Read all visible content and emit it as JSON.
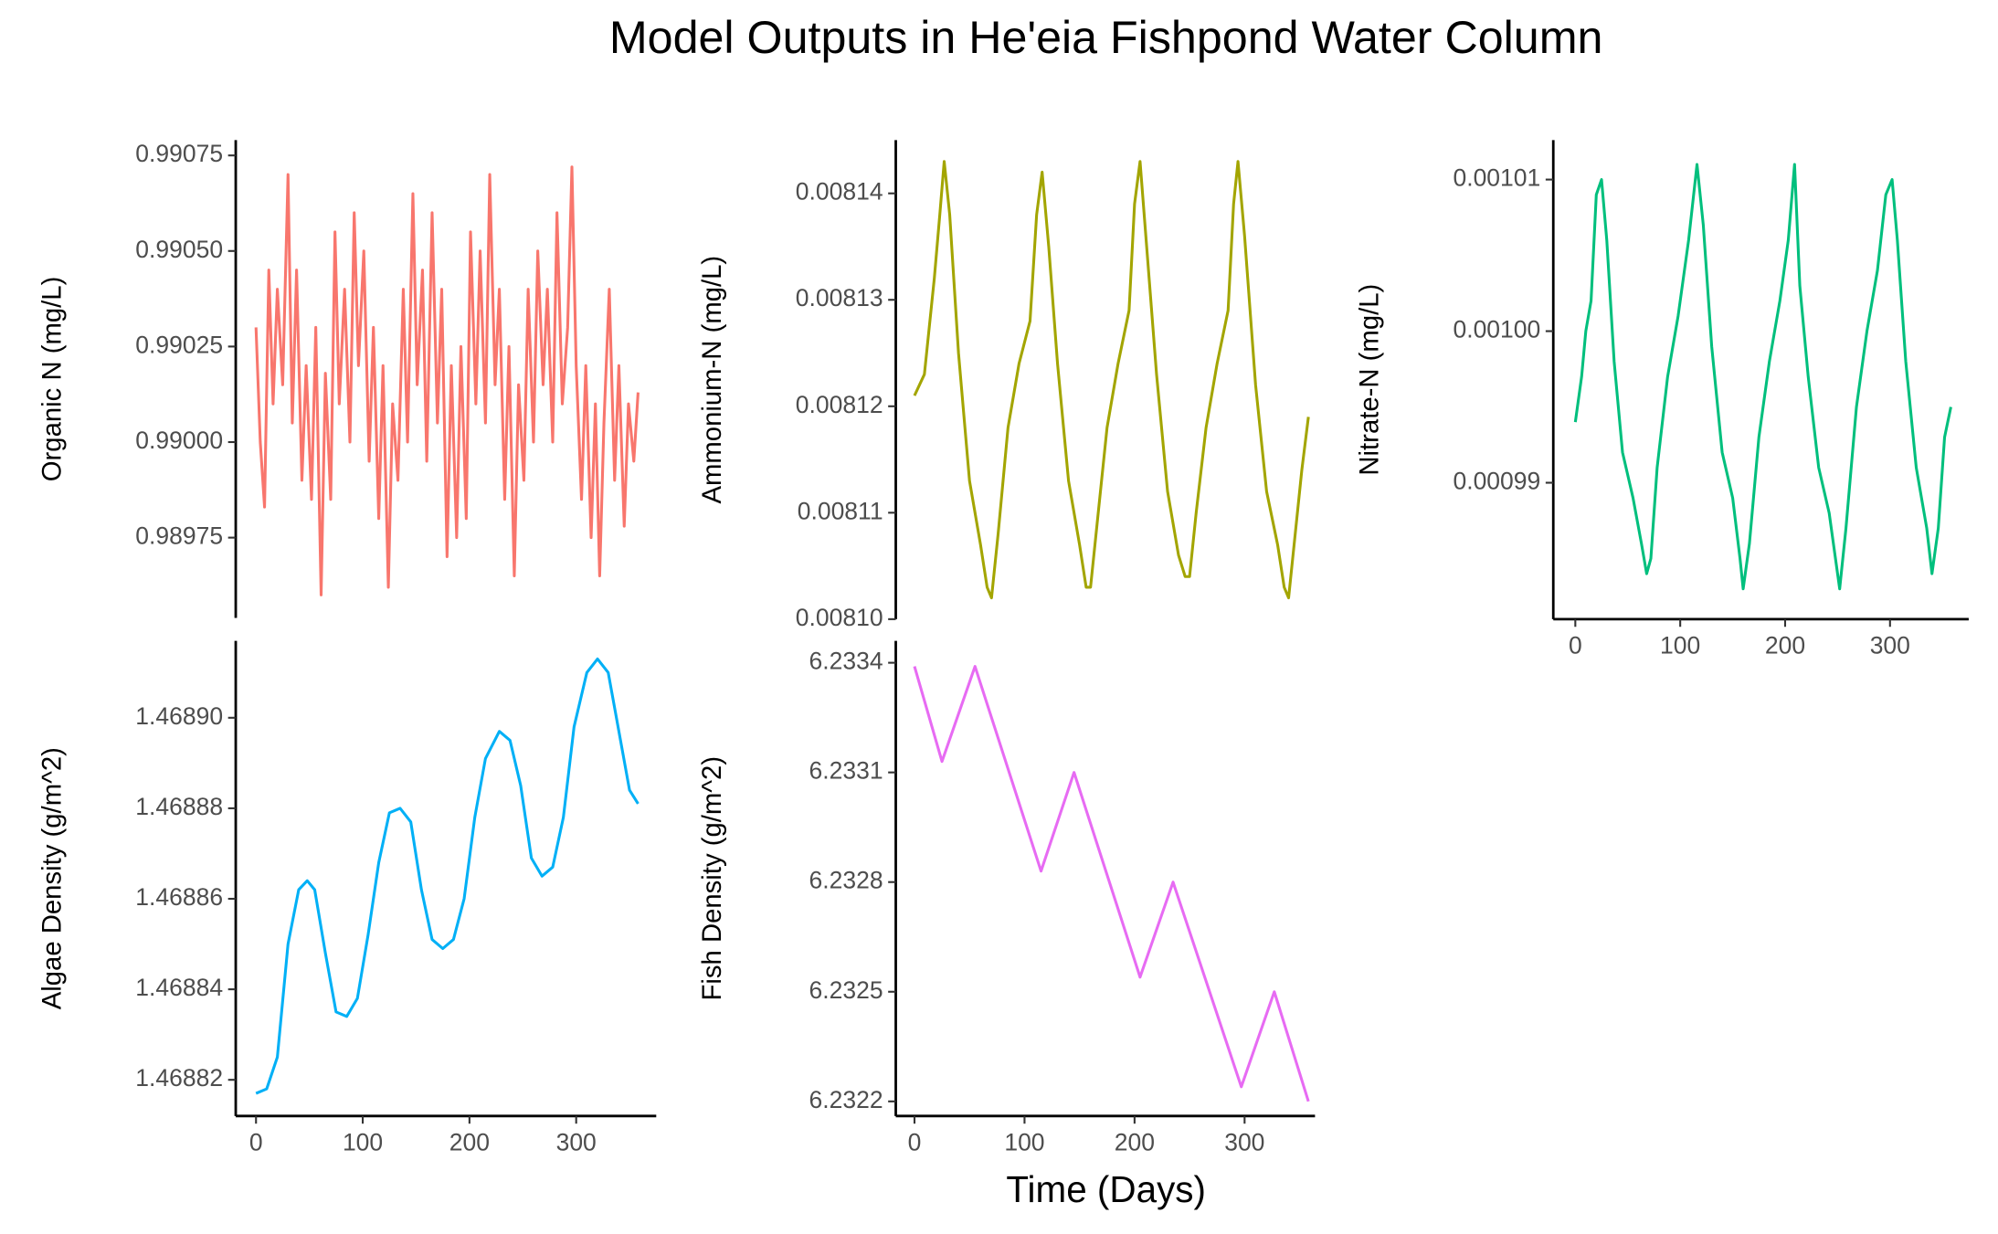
{
  "title": "Model Outputs in He'eia Fishpond Water Column",
  "x_label": "Time (Days)",
  "chart_data": [
    {
      "type": "line",
      "y_label": "Organic N (mg/L)",
      "color": "#F8766D",
      "x": [
        0,
        4,
        8,
        12,
        16,
        20,
        25,
        30,
        34,
        38,
        43,
        47,
        52,
        56,
        61,
        65,
        70,
        74,
        78,
        83,
        88,
        92,
        96,
        101,
        106,
        110,
        115,
        119,
        124,
        128,
        133,
        138,
        142,
        147,
        151,
        156,
        160,
        165,
        170,
        174,
        179,
        183,
        188,
        192,
        197,
        201,
        206,
        210,
        215,
        219,
        224,
        228,
        233,
        237,
        242,
        246,
        251,
        255,
        260,
        264,
        269,
        273,
        278,
        282,
        287,
        292,
        296,
        300,
        305,
        309,
        314,
        318,
        322,
        326,
        331,
        336,
        340,
        345,
        349,
        354,
        358
      ],
      "values": [
        0.9903,
        0.99,
        0.98983,
        0.99045,
        0.9901,
        0.9904,
        0.99015,
        0.9907,
        0.99005,
        0.99045,
        0.9899,
        0.9902,
        0.98985,
        0.9903,
        0.9896,
        0.99018,
        0.98985,
        0.99055,
        0.9901,
        0.9904,
        0.99,
        0.9906,
        0.9902,
        0.9905,
        0.98995,
        0.9903,
        0.9898,
        0.9902,
        0.98962,
        0.9901,
        0.9899,
        0.9904,
        0.99,
        0.99065,
        0.99015,
        0.99045,
        0.98995,
        0.9906,
        0.99005,
        0.9904,
        0.9897,
        0.9902,
        0.98975,
        0.99025,
        0.9898,
        0.99055,
        0.9901,
        0.9905,
        0.99005,
        0.9907,
        0.99015,
        0.9904,
        0.98985,
        0.99025,
        0.98965,
        0.99015,
        0.9899,
        0.9904,
        0.99,
        0.9905,
        0.99015,
        0.9904,
        0.99,
        0.9906,
        0.9901,
        0.9903,
        0.99072,
        0.9902,
        0.98985,
        0.9902,
        0.98975,
        0.9901,
        0.98965,
        0.99005,
        0.9904,
        0.9899,
        0.9902,
        0.98978,
        0.9901,
        0.98995,
        0.99013
      ],
      "xlim": [
        -19,
        375
      ],
      "ylim": [
        0.98954,
        0.99079
      ],
      "yticks": [
        0.98975,
        {
          "value": 0.99,
          "label": "0.99000"
        },
        0.99025,
        {
          "value": 0.9905,
          "label": "0.99050"
        },
        0.99075
      ]
    },
    {
      "type": "line",
      "y_label": "Ammonium-N (mg/L)",
      "color": "#A3A500",
      "x": [
        0,
        9,
        18,
        23,
        27,
        32,
        40,
        50,
        60,
        66,
        70,
        76,
        85,
        95,
        105,
        111,
        116,
        122,
        130,
        140,
        150,
        156,
        160,
        166,
        175,
        185,
        195,
        200,
        205,
        211,
        220,
        230,
        240,
        246,
        250,
        256,
        265,
        275,
        285,
        290,
        294,
        300,
        310,
        320,
        330,
        336,
        340,
        346,
        352,
        358
      ],
      "values": [
        0.008121,
        0.008123,
        0.008132,
        0.008138,
        0.008143,
        0.008138,
        0.008125,
        0.008113,
        0.008107,
        0.008103,
        0.008102,
        0.008108,
        0.008118,
        0.008124,
        0.008128,
        0.008138,
        0.008142,
        0.008135,
        0.008124,
        0.008113,
        0.008107,
        0.008103,
        0.008103,
        0.008109,
        0.008118,
        0.008124,
        0.008129,
        0.008139,
        0.008143,
        0.008135,
        0.008123,
        0.008112,
        0.008106,
        0.008104,
        0.008104,
        0.00811,
        0.008118,
        0.008124,
        0.008129,
        0.008139,
        0.008143,
        0.008136,
        0.008122,
        0.008112,
        0.008107,
        0.008103,
        0.008102,
        0.008108,
        0.008114,
        0.008119
      ],
      "xlim": [
        -17,
        364
      ],
      "ylim": [
        0.0081,
        0.008145
      ],
      "yticks": [
        {
          "value": 0.0081,
          "label": "0.00810"
        },
        0.00811,
        0.00812,
        0.00813,
        0.00814
      ]
    },
    {
      "type": "line",
      "y_label": "Nitrate-N (mg/L)",
      "color": "#00BF7D",
      "x": [
        0,
        6,
        10,
        15,
        20,
        25,
        30,
        37,
        45,
        55,
        63,
        68,
        72,
        78,
        88,
        98,
        108,
        116,
        122,
        130,
        140,
        150,
        157,
        160,
        166,
        175,
        185,
        195,
        203,
        209,
        214,
        222,
        232,
        242,
        248,
        252,
        258,
        268,
        278,
        288,
        296,
        302,
        307,
        315,
        325,
        335,
        340,
        346,
        352,
        358
      ],
      "values": [
        0.000994,
        0.000997,
        0.001,
        0.001002,
        0.001009,
        0.00101,
        0.001006,
        0.000998,
        0.000992,
        0.000989,
        0.000986,
        0.000984,
        0.000985,
        0.000991,
        0.000997,
        0.001001,
        0.001006,
        0.001011,
        0.001007,
        0.000999,
        0.000992,
        0.000989,
        0.000985,
        0.000983,
        0.000986,
        0.000993,
        0.000998,
        0.001002,
        0.001006,
        0.001011,
        0.001003,
        0.000997,
        0.000991,
        0.000988,
        0.000985,
        0.000983,
        0.000987,
        0.000995,
        0.001,
        0.001004,
        0.001009,
        0.00101,
        0.001006,
        0.000998,
        0.000991,
        0.000987,
        0.000984,
        0.000987,
        0.000993,
        0.000995
      ],
      "xlim": [
        -21,
        375
      ],
      "ylim": [
        0.000981,
        0.0010126
      ],
      "xticks": [
        0,
        100,
        200,
        300
      ],
      "yticks": [
        0.00099,
        {
          "value": 0.001,
          "label": "0.00100"
        },
        0.00101
      ]
    },
    {
      "type": "line",
      "y_label": "Algae Density (g/m^2)",
      "color": "#00B0F6",
      "x": [
        0,
        10,
        20,
        30,
        40,
        48,
        55,
        65,
        75,
        85,
        95,
        105,
        115,
        125,
        135,
        145,
        155,
        165,
        175,
        185,
        195,
        205,
        215,
        228,
        238,
        248,
        258,
        268,
        278,
        288,
        298,
        310,
        320,
        330,
        340,
        350,
        358
      ],
      "values": [
        1.468817,
        1.468818,
        1.468825,
        1.46885,
        1.468862,
        1.468864,
        1.468862,
        1.468848,
        1.468835,
        1.468834,
        1.468838,
        1.468852,
        1.468868,
        1.468879,
        1.46888,
        1.468877,
        1.468862,
        1.468851,
        1.468849,
        1.468851,
        1.46886,
        1.468878,
        1.468891,
        1.468897,
        1.468895,
        1.468885,
        1.468869,
        1.468865,
        1.468867,
        1.468878,
        1.468898,
        1.46891,
        1.468913,
        1.46891,
        1.468897,
        1.468884,
        1.468881
      ],
      "xlim": [
        -19,
        375
      ],
      "ylim": [
        1.468812,
        1.468917
      ],
      "xticks": [
        0,
        100,
        200,
        300
      ],
      "yticks": [
        1.46882,
        1.46884,
        1.46886,
        1.46888,
        {
          "value": 1.4689,
          "label": "1.46890"
        }
      ]
    },
    {
      "type": "line",
      "y_label": "Fish Density (g/m^2)",
      "color": "#E76BF3",
      "x": [
        0,
        25,
        55,
        115,
        145,
        205,
        235,
        297,
        327,
        358
      ],
      "values": [
        6.23339,
        6.23313,
        6.23339,
        6.23283,
        6.2331,
        6.23254,
        6.2328,
        6.23224,
        6.2325,
        6.2322
      ],
      "xlim": [
        -17,
        364
      ],
      "ylim": [
        6.23216,
        6.23346
      ],
      "xticks": [
        0,
        100,
        200,
        300
      ],
      "yticks": [
        6.2322,
        6.2325,
        6.2328,
        6.2331,
        6.2334
      ]
    }
  ]
}
